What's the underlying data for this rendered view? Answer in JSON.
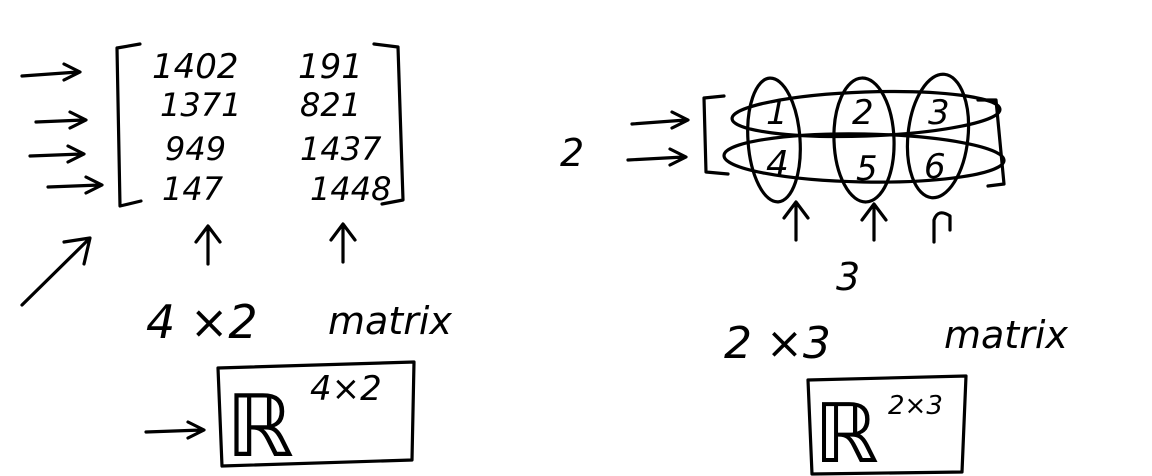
{
  "left": {
    "matrix_rows": [
      [
        "1402",
        "191"
      ],
      [
        "1371",
        "821"
      ],
      [
        "949",
        "1437"
      ],
      [
        "147",
        "1448"
      ]
    ],
    "caption_dims": "4 ×2",
    "caption_word": "matrix",
    "space_base": "ℝ",
    "space_exp": "4×2"
  },
  "right": {
    "matrix_rows": [
      [
        "1",
        "2",
        "3"
      ],
      [
        "4",
        "5",
        "6"
      ]
    ],
    "row_count": "2",
    "col_count": "3",
    "caption_dims": "2 ×3",
    "caption_word": "matrix",
    "space_base": "ℝ",
    "space_exp": "2×3"
  }
}
